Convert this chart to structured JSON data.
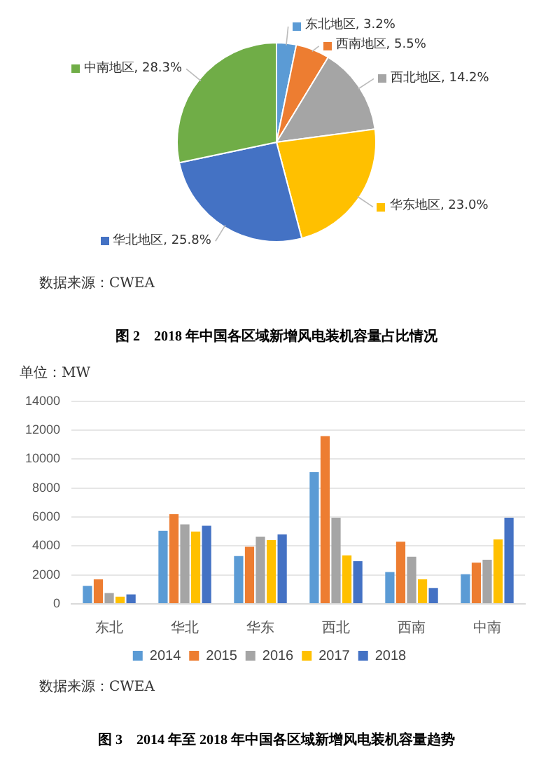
{
  "chart_data": [
    {
      "type": "pie",
      "title": "图 2　2018 年中国各区域新增风电装机容量占比情况",
      "annotations": [
        "数据来源：CWEA"
      ],
      "categories": [
        "东北地区",
        "西南地区",
        "西北地区",
        "华东地区",
        "华北地区",
        "中南地区"
      ],
      "values": [
        3.2,
        5.5,
        14.2,
        23.0,
        25.8,
        28.3
      ],
      "colors": [
        "#5b9bd5",
        "#ed7d31",
        "#a5a5a5",
        "#ffc000",
        "#4472c4",
        "#70ad47"
      ],
      "value_labels": [
        "3.2%",
        "5.5%",
        "14.2%",
        "23.0%",
        "25.8%",
        "28.3%"
      ],
      "legend": "right"
    },
    {
      "type": "bar",
      "title": "图 3　2014 年至 2018 年中国各区域新增风电装机容量趋势",
      "ylabel": "单位：MW",
      "annotations": [
        "数据来源：CWEA"
      ],
      "categories": [
        "东北",
        "华北",
        "华东",
        "西北",
        "西南",
        "中南"
      ],
      "series": [
        {
          "name": "2014",
          "color": "#5b9bd5",
          "values": [
            1250,
            5050,
            3300,
            9100,
            2200,
            2050
          ]
        },
        {
          "name": "2015",
          "color": "#ed7d31",
          "values": [
            1700,
            6200,
            3950,
            11600,
            4300,
            2850
          ]
        },
        {
          "name": "2016",
          "color": "#a5a5a5",
          "values": [
            750,
            5500,
            4650,
            5950,
            3250,
            3050
          ]
        },
        {
          "name": "2017",
          "color": "#ffc000",
          "values": [
            500,
            5000,
            4400,
            3350,
            1700,
            4450
          ]
        },
        {
          "name": "2018",
          "color": "#4472c4",
          "values": [
            650,
            5400,
            4800,
            2950,
            1100,
            5950
          ]
        }
      ],
      "ylim": [
        0,
        14000
      ],
      "yticks": [
        0,
        2000,
        4000,
        6000,
        8000,
        10000,
        12000,
        14000
      ],
      "grid": "y",
      "legend": "bottom"
    }
  ]
}
